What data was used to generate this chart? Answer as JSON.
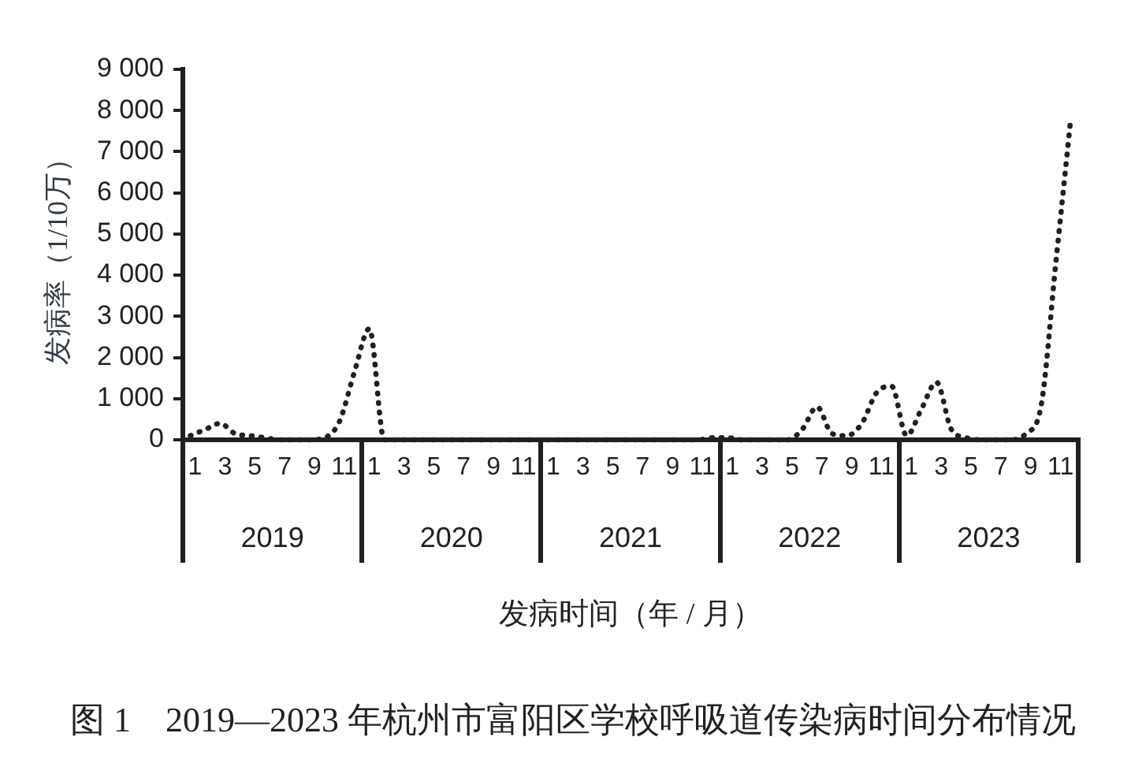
{
  "chart_data": {
    "type": "line",
    "title": "图 1　2019—2023 年杭州市富阳区学校呼吸道传染病时间分布情况",
    "xlabel": "发病时间（年 / 月）",
    "ylabel": "发病率（1/10万）",
    "categories": [
      "1",
      null,
      "3",
      null,
      "5",
      null,
      "7",
      null,
      "9",
      null,
      "11",
      null,
      "1",
      null,
      "3",
      null,
      "5",
      null,
      "7",
      null,
      "9",
      null,
      "11",
      null,
      "1",
      null,
      "3",
      null,
      "5",
      null,
      "7",
      null,
      "9",
      null,
      "11",
      null,
      "1",
      null,
      "3",
      null,
      "5",
      null,
      "7",
      null,
      "9",
      null,
      "11",
      null,
      "1",
      null,
      "3",
      null,
      "5",
      null,
      "7",
      null,
      "9",
      null,
      "11",
      null
    ],
    "values": [
      100,
      250,
      400,
      150,
      100,
      50,
      0,
      0,
      0,
      50,
      450,
      1650,
      2700,
      0,
      0,
      0,
      0,
      0,
      0,
      0,
      0,
      0,
      0,
      0,
      0,
      0,
      0,
      0,
      0,
      0,
      0,
      0,
      0,
      0,
      0,
      50,
      50,
      0,
      0,
      0,
      0,
      250,
      800,
      150,
      100,
      400,
      1150,
      1300,
      100,
      750,
      1400,
      250,
      50,
      0,
      0,
      0,
      150,
      800,
      4300,
      7800
    ],
    "color": "#231f20",
    "line_style": "dotted",
    "ylim": [
      0,
      9000
    ],
    "yticks": [
      0,
      {
        "value": 1000,
        "label": "1 000"
      },
      {
        "value": 2000,
        "label": "2 000"
      },
      {
        "value": 3000,
        "label": "3 000"
      },
      {
        "value": 4000,
        "label": "4 000"
      },
      {
        "value": 5000,
        "label": "5 000"
      },
      {
        "value": 6000,
        "label": "6 000"
      },
      {
        "value": 7000,
        "label": "7 000"
      },
      {
        "value": 8000,
        "label": "8 000"
      },
      {
        "value": 9000,
        "label": "9 000"
      }
    ],
    "annotations": [
      "2019",
      "2020",
      "2021",
      "2022",
      "2023"
    ]
  }
}
